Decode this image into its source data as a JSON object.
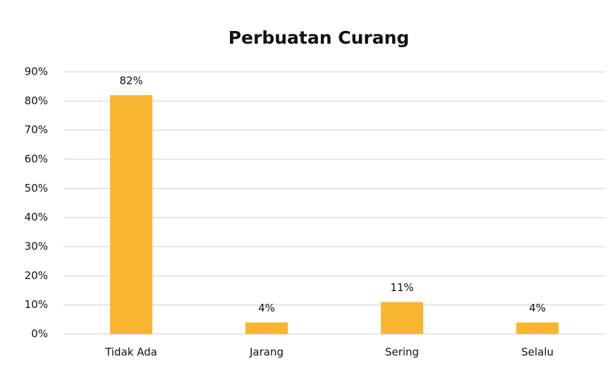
{
  "chart_data": {
    "type": "bar",
    "title": "Perbuatan Curang",
    "categories": [
      "Tidak Ada",
      "Jarang",
      "Sering",
      "Selalu"
    ],
    "values": [
      82,
      4,
      11,
      4
    ],
    "value_labels": [
      "82%",
      "4%",
      "11%",
      "4%"
    ],
    "color": "#f8b630",
    "ylim": [
      0,
      90
    ],
    "yticks": [
      {
        "value": 0,
        "label": "0%"
      },
      {
        "value": 10,
        "label": "10%"
      },
      {
        "value": 20,
        "label": "20%"
      },
      {
        "value": 30,
        "label": "30%"
      },
      {
        "value": 40,
        "label": "40%"
      },
      {
        "value": 50,
        "label": "50%"
      },
      {
        "value": 60,
        "label": "60%"
      },
      {
        "value": 70,
        "label": "70%"
      },
      {
        "value": 80,
        "label": "80%"
      },
      {
        "value": 90,
        "label": "90%"
      }
    ],
    "grid": true
  }
}
